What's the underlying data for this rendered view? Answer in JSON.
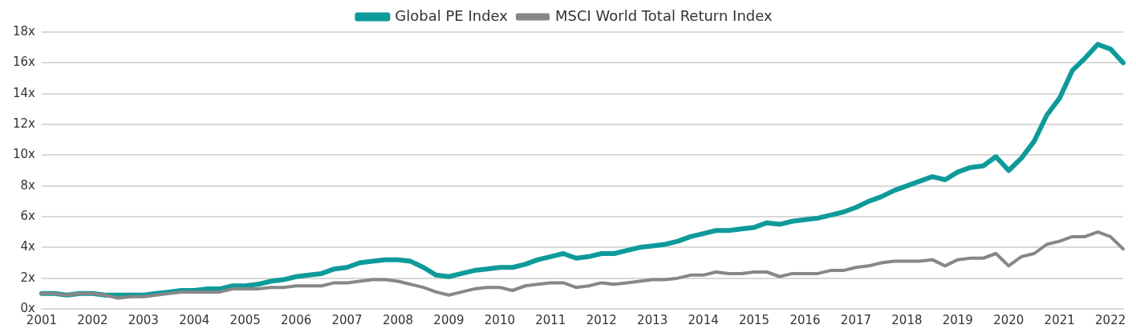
{
  "chart_data": {
    "type": "line",
    "categories": [
      "2001",
      null,
      null,
      null,
      "2002",
      null,
      null,
      null,
      "2003",
      null,
      null,
      null,
      "2004",
      null,
      null,
      null,
      "2005",
      null,
      null,
      null,
      "2006",
      null,
      null,
      null,
      "2007",
      null,
      null,
      null,
      "2008",
      null,
      null,
      null,
      "2009",
      null,
      null,
      null,
      "2010",
      null,
      null,
      null,
      "2011",
      null,
      null,
      null,
      "2012",
      null,
      null,
      null,
      "2013",
      null,
      null,
      null,
      "2014",
      null,
      null,
      null,
      "2015",
      null,
      null,
      null,
      "2016",
      null,
      null,
      null,
      "2017",
      null,
      null,
      null,
      "2018",
      null,
      null,
      null,
      "2019",
      null,
      null,
      null,
      "2020",
      null,
      null,
      null,
      "2021",
      null,
      null,
      null,
      "2022",
      null
    ],
    "series": [
      {
        "name": "Global PE Index",
        "color": "#0e9a9a",
        "values": [
          1.0,
          1.0,
          0.9,
          1.0,
          1.0,
          0.9,
          0.9,
          0.9,
          0.9,
          1.0,
          1.1,
          1.2,
          1.2,
          1.3,
          1.3,
          1.5,
          1.5,
          1.6,
          1.8,
          1.9,
          2.1,
          2.2,
          2.3,
          2.6,
          2.7,
          3.0,
          3.1,
          3.2,
          3.2,
          3.1,
          2.7,
          2.2,
          2.1,
          2.3,
          2.5,
          2.6,
          2.7,
          2.7,
          2.9,
          3.2,
          3.4,
          3.6,
          3.3,
          3.4,
          3.6,
          3.6,
          3.8,
          4.0,
          4.1,
          4.2,
          4.4,
          4.7,
          4.9,
          5.1,
          5.1,
          5.2,
          5.3,
          5.6,
          5.5,
          5.7,
          5.8,
          5.9,
          6.1,
          6.3,
          6.6,
          7.0,
          7.3,
          7.7,
          8.0,
          8.3,
          8.6,
          8.4,
          8.9,
          9.2,
          9.3,
          9.9,
          9.0,
          9.8,
          10.9,
          12.6,
          13.7,
          15.5,
          16.3,
          17.2,
          16.9,
          16.0
        ]
      },
      {
        "name": "MSCI World Total Return Index",
        "color": "#878787",
        "values": [
          1.0,
          1.0,
          0.9,
          1.0,
          1.0,
          0.9,
          0.7,
          0.8,
          0.8,
          0.9,
          1.0,
          1.1,
          1.1,
          1.1,
          1.1,
          1.3,
          1.3,
          1.3,
          1.4,
          1.4,
          1.5,
          1.5,
          1.5,
          1.7,
          1.7,
          1.8,
          1.9,
          1.9,
          1.8,
          1.6,
          1.4,
          1.1,
          0.9,
          1.1,
          1.3,
          1.4,
          1.4,
          1.2,
          1.5,
          1.6,
          1.7,
          1.7,
          1.4,
          1.5,
          1.7,
          1.6,
          1.7,
          1.8,
          1.9,
          1.9,
          2.0,
          2.2,
          2.2,
          2.4,
          2.3,
          2.3,
          2.4,
          2.4,
          2.1,
          2.3,
          2.3,
          2.3,
          2.5,
          2.5,
          2.7,
          2.8,
          3.0,
          3.1,
          3.1,
          3.1,
          3.2,
          2.8,
          3.2,
          3.3,
          3.3,
          3.6,
          2.8,
          3.4,
          3.6,
          4.2,
          4.4,
          4.7,
          4.7,
          5.0,
          4.7,
          3.9
        ]
      }
    ],
    "ylim": [
      0,
      18
    ],
    "yticks": [
      {
        "value": 0,
        "label": "0x"
      },
      {
        "value": 2,
        "label": "2x"
      },
      {
        "value": 4,
        "label": "4x"
      },
      {
        "value": 6,
        "label": "6x"
      },
      {
        "value": 8,
        "label": "8x"
      },
      {
        "value": 10,
        "label": "10x"
      },
      {
        "value": 12,
        "label": "12x"
      },
      {
        "value": 14,
        "label": "14x"
      },
      {
        "value": 16,
        "label": "16x"
      },
      {
        "value": 18,
        "label": "18x"
      }
    ],
    "grid": "y",
    "legend": "top",
    "marker": "none",
    "line_style": "solid"
  }
}
